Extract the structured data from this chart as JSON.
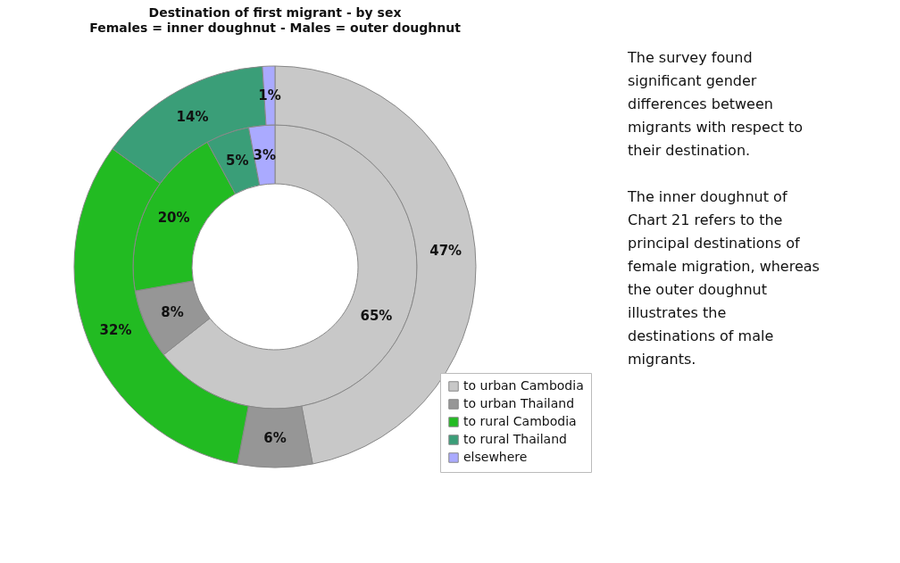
{
  "chart_data": [
    {
      "type": "donut",
      "title": "Destination of first migrant - by sex",
      "subtitle": "Females = inner doughnut - Males = outer doughnut",
      "categories": [
        "to urban Cambodia",
        "to urban Thailand",
        "to rural Cambodia",
        "to rural Thailand",
        "elsewhere"
      ],
      "colors": [
        "#c8c8c8",
        "#969696",
        "#22bb22",
        "#3a9e78",
        "#aaaaff"
      ],
      "series": [
        {
          "values": [
            65,
            8,
            20,
            5,
            3
          ],
          "value_labels": [
            "65%",
            "8%",
            "20%",
            "5%",
            "3%"
          ]
        },
        {
          "values": [
            47,
            6,
            32,
            14,
            1
          ],
          "value_labels": [
            "47%",
            "6%",
            "32%",
            "14%",
            "1%"
          ]
        }
      ],
      "legend": "bottom right"
    },
    {
      "type": "other",
      "annotations": [
        "The survey found significant gender differences between migrants with respect to their destination.",
        "The inner doughnut of Chart 21 refers to the principal destinations of female migration, whereas the outer doughnut illustrates the destinations of male migrants."
      ]
    }
  ]
}
